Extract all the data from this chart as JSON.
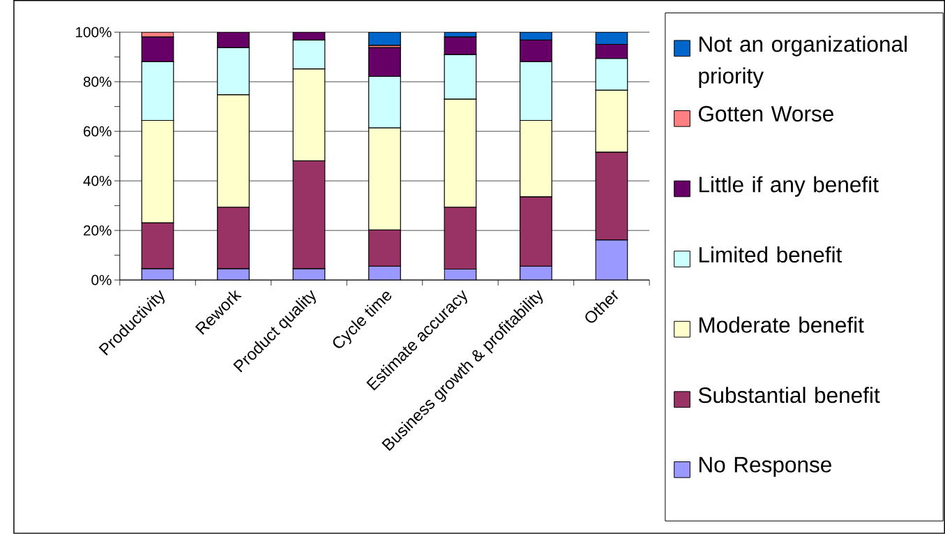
{
  "chart_data": {
    "type": "bar",
    "stacked": true,
    "categories": [
      "Productivity",
      "Rework",
      "Product quality",
      "Cycle time",
      "Estimate accuracy",
      "Business growth & profitability",
      "Other"
    ],
    "series": [
      {
        "name": "No Response",
        "color": "#9999ff",
        "values": [
          4.6,
          4.6,
          4.6,
          5.6,
          4.4,
          5.6,
          16.2
        ]
      },
      {
        "name": "Substantial benefit",
        "color": "#993366",
        "values": [
          18.5,
          24.8,
          43.5,
          14.6,
          25.0,
          28.0,
          35.4
        ]
      },
      {
        "name": "Moderate benefit",
        "color": "#ffffcc",
        "values": [
          41.3,
          45.4,
          37.1,
          41.2,
          43.6,
          30.8,
          25.0
        ]
      },
      {
        "name": "Limited benefit",
        "color": "#ccffff",
        "values": [
          23.7,
          19.0,
          11.6,
          20.8,
          18.0,
          23.7,
          12.8
        ]
      },
      {
        "name": "Little if any benefit",
        "color": "#660066",
        "values": [
          10.0,
          6.2,
          3.2,
          11.6,
          7.1,
          8.7,
          5.7
        ]
      },
      {
        "name": "Gotten Worse",
        "color": "#ff8080",
        "values": [
          1.9,
          0,
          0,
          0.9,
          0,
          0,
          0
        ]
      },
      {
        "name": "Not an organizational priority",
        "color": "#0066cc",
        "values": [
          0,
          0,
          0,
          5.3,
          1.9,
          3.2,
          4.9
        ]
      }
    ],
    "ylim": [
      0,
      100
    ],
    "yticks": [
      {
        "value": 0,
        "label": "0%"
      },
      {
        "value": 20,
        "label": "20%"
      },
      {
        "value": 40,
        "label": "40%"
      },
      {
        "value": 60,
        "label": "60%"
      },
      {
        "value": 80,
        "label": "80%"
      },
      {
        "value": 100,
        "label": "100%"
      }
    ],
    "grid": "y",
    "legend": "right"
  }
}
